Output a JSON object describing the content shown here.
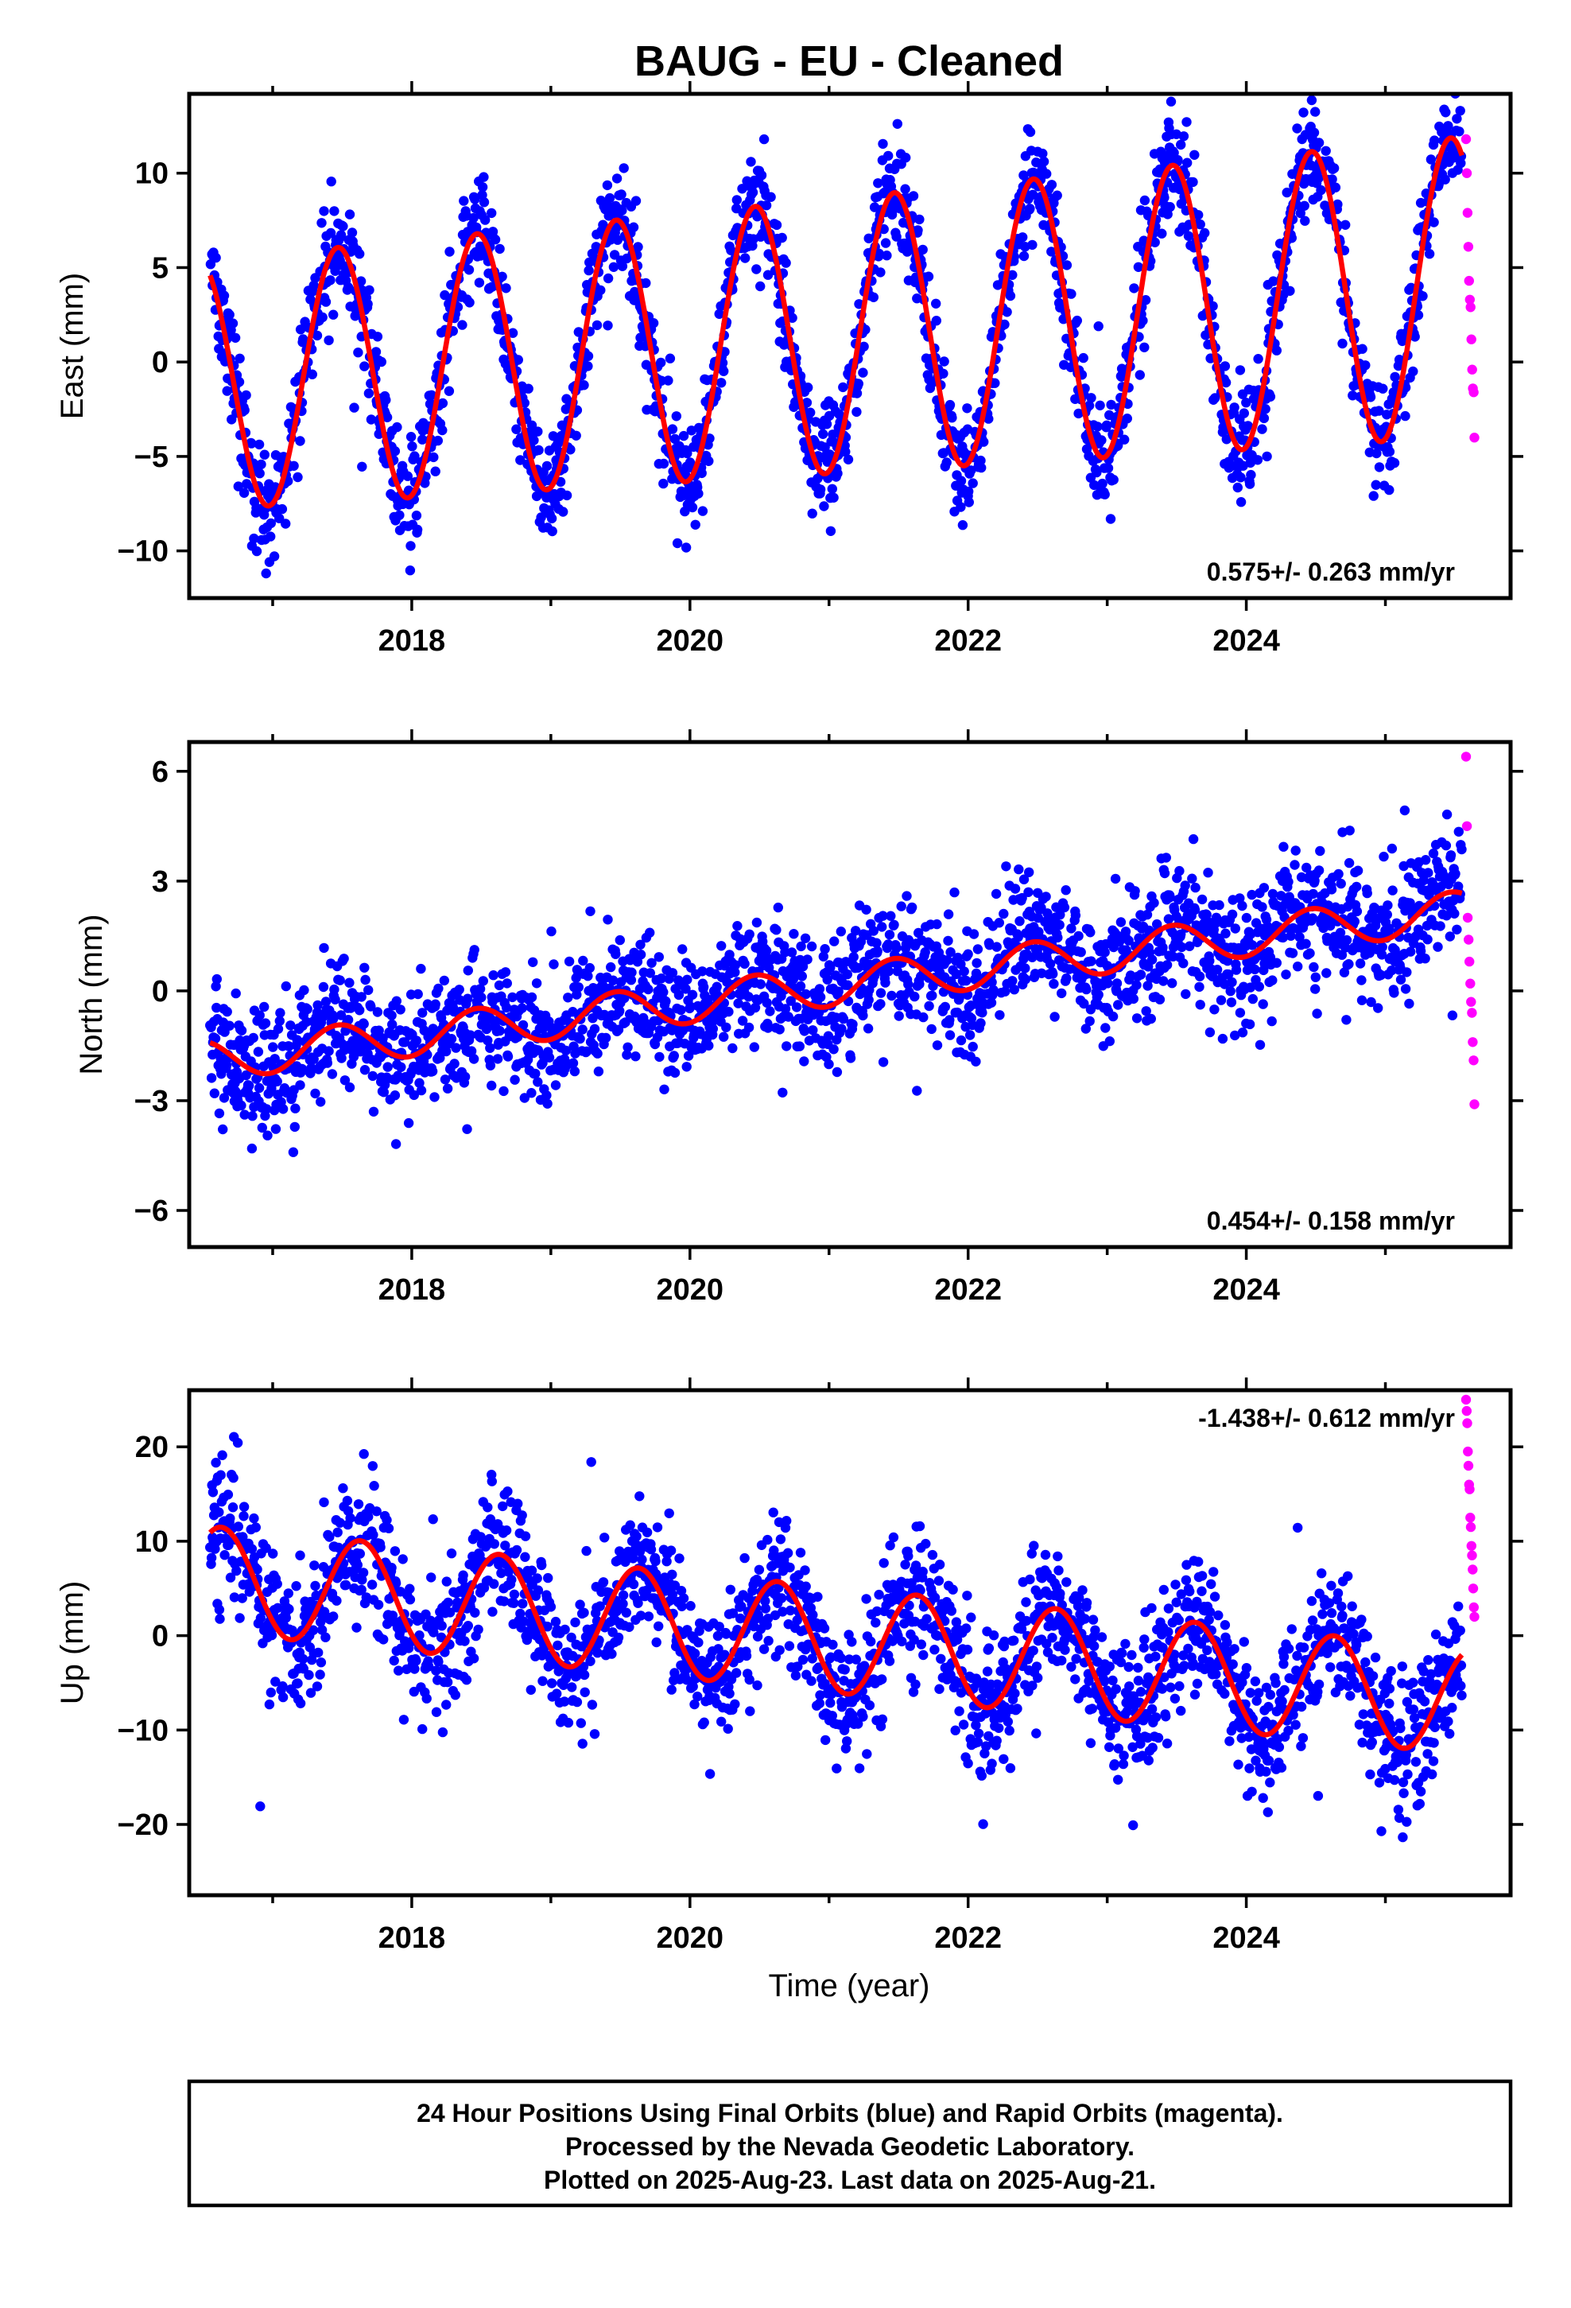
{
  "title": "BAUG  - EU - Cleaned",
  "xlabel": "Time (year)",
  "footer": {
    "line1": "24 Hour Positions Using Final Orbits (blue) and Rapid Orbits (magenta).",
    "line2": "Processed by the Nevada Geodetic Laboratory.",
    "line3": "Plotted on 2025-Aug-23. Last data on 2025-Aug-21."
  },
  "colors": {
    "final": "#0000ff",
    "rapid": "#ff00ff",
    "model": "#ff0000",
    "axis": "#000000"
  },
  "chart_data": [
    {
      "type": "scatter",
      "ylabel": "East (mm)",
      "trend_label": "0.575+/- 0.263 mm/yr",
      "xlim": [
        2016.4,
        2025.9
      ],
      "ylim": [
        -12.5,
        14.2
      ],
      "xticks": [
        "2018",
        "2020",
        "2022",
        "2024"
      ],
      "yticks": [
        "10",
        "5",
        "0",
        "−5",
        "−10"
      ],
      "data_start": 2016.55,
      "data_end": 2025.55,
      "rapid_start": 2025.58,
      "rapid_end": 2025.64,
      "model": {
        "offset": -1.2,
        "rate": 0.575,
        "amplitude": 6.6,
        "amplitude_growth": 0.15,
        "phase_year": 0.47,
        "noise_mm": 1.5
      },
      "rapid_values": [
        11.8,
        10.0,
        7.9,
        6.1,
        4.3,
        3.3,
        2.9,
        1.2,
        -0.4,
        -1.4,
        -1.6,
        -4.0
      ]
    },
    {
      "type": "scatter",
      "ylabel": "North (mm)",
      "trend_label": "0.454+/- 0.158 mm/yr",
      "xlim": [
        2016.4,
        2025.9
      ],
      "ylim": [
        -7.0,
        6.8
      ],
      "xticks": [
        "2018",
        "2020",
        "2022",
        "2024"
      ],
      "yticks": [
        "6",
        "3",
        "0",
        "−3",
        "−6"
      ],
      "data_start": 2016.55,
      "data_end": 2025.55,
      "rapid_start": 2025.58,
      "rapid_end": 2025.64,
      "model": {
        "offset": -1.9,
        "rate": 0.454,
        "amplitude": 0.55,
        "amplitude_growth": 0.0,
        "phase_year": 0.47,
        "noise_mm": 0.85
      },
      "rapid_values": [
        6.4,
        4.5,
        2.0,
        1.4,
        0.8,
        0.2,
        -0.3,
        -0.6,
        -1.4,
        -1.9,
        -3.1
      ]
    },
    {
      "type": "scatter",
      "ylabel": "Up (mm)",
      "trend_label": "-1.438+/- 0.612 mm/yr",
      "xlim": [
        2016.4,
        2025.9
      ],
      "ylim": [
        -27.5,
        26.0
      ],
      "xticks": [
        "2018",
        "2020",
        "2022",
        "2024"
      ],
      "yticks": [
        "20",
        "10",
        "0",
        "−10",
        "−20"
      ],
      "data_start": 2016.55,
      "data_end": 2025.55,
      "rapid_start": 2025.58,
      "rapid_end": 2025.64,
      "model": {
        "offset": 6.0,
        "rate": -1.438,
        "amplitude": 5.6,
        "amplitude_growth": 0.0,
        "phase_year": 0.63,
        "noise_mm": 3.6
      },
      "rapid_values": [
        25.0,
        23.8,
        22.5,
        19.5,
        18.0,
        16.0,
        15.5,
        12.5,
        11.5,
        9.5,
        8.5,
        7.0,
        5.0,
        3.0,
        2.0
      ]
    }
  ]
}
